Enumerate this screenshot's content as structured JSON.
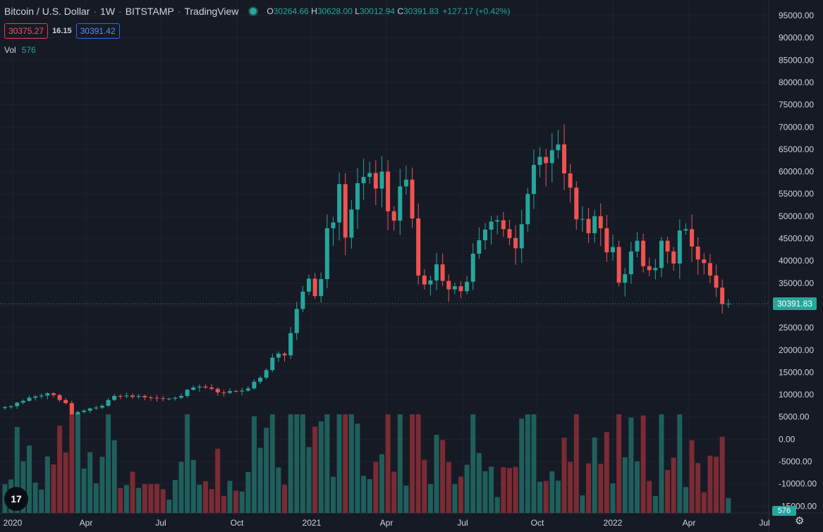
{
  "header": {
    "title": "Bitcoin / U.S. Dollar",
    "interval": "1W",
    "exchange": "BITSTAMP",
    "source": "TradingView",
    "open_label": "O",
    "open": "30264.66",
    "high_label": "H",
    "high": "30628.00",
    "low_label": "L",
    "low": "30012.94",
    "close_label": "C",
    "close": "30391.83",
    "change": "+127.17 (+0.42%)"
  },
  "trade": {
    "sell": "30375.27",
    "spread": "16.15",
    "buy": "30391.42"
  },
  "volume_legend": {
    "label": "Vol",
    "value": "576"
  },
  "last_price_label": "30391.83",
  "volume_badge": "576",
  "logo_text": "17",
  "icons": {
    "settings": "gear-icon",
    "eye": "eye-icon"
  },
  "colors": {
    "background": "#161a25",
    "grid": "#1f2330",
    "up": "#26a69a",
    "down": "#ef5350",
    "vol_up": "#1f5f5b",
    "vol_down": "#7a2b33",
    "text": "#d1d4dc"
  },
  "chart_data": {
    "type": "candlestick",
    "y_ticks": [
      "95000.00",
      "90000.00",
      "85000.00",
      "80000.00",
      "75000.00",
      "70000.00",
      "65000.00",
      "60000.00",
      "55000.00",
      "50000.00",
      "45000.00",
      "40000.00",
      "35000.00",
      "30000.00",
      "25000.00",
      "20000.00",
      "15000.00",
      "10000.00",
      "5000.00",
      "0.00",
      "-5000.00",
      "-10000.00",
      "-15000.00"
    ],
    "x_ticks": [
      "2020",
      "Apr",
      "Jul",
      "Oct",
      "2021",
      "Apr",
      "Jul",
      "Oct",
      "2022",
      "Apr",
      "Jul"
    ],
    "ylim": [
      -17000,
      97000
    ],
    "series_closes": [
      7200,
      7400,
      8200,
      8600,
      9300,
      9600,
      9800,
      10300,
      9900,
      8800,
      8100,
      5300,
      6100,
      6400,
      6900,
      7100,
      7500,
      8800,
      9700,
      9600,
      9800,
      9500,
      9700,
      9400,
      9300,
      9200,
      9100,
      9100,
      9300,
      9700,
      11100,
      11600,
      11800,
      11600,
      11300,
      10500,
      10400,
      10800,
      10700,
      10900,
      11400,
      12900,
      13800,
      15500,
      18300,
      19200,
      18800,
      23800,
      29200,
      33100,
      36000,
      32100,
      35900,
      47300,
      48600,
      57200,
      45200,
      51500,
      57400,
      58800,
      59700,
      56200,
      60000,
      51100,
      49000,
      56700,
      58200,
      49500,
      36700,
      34700,
      35600,
      39200,
      35500,
      33600,
      34300,
      33200,
      35300,
      41600,
      44600,
      47000,
      48800,
      49100,
      47100,
      45100,
      42800,
      48200,
      55000,
      61500,
      63300,
      61900,
      64800,
      66100,
      59600,
      56400,
      49300,
      49400,
      46200,
      50000,
      47300,
      41900,
      43100,
      35100,
      37000,
      42100,
      44500,
      38800,
      37900,
      38400,
      44500,
      42100,
      39400,
      46800,
      47100,
      43200,
      40300,
      39500,
      36700,
      34000,
      30300,
      30400
    ],
    "candle_count_visible": 120
  }
}
